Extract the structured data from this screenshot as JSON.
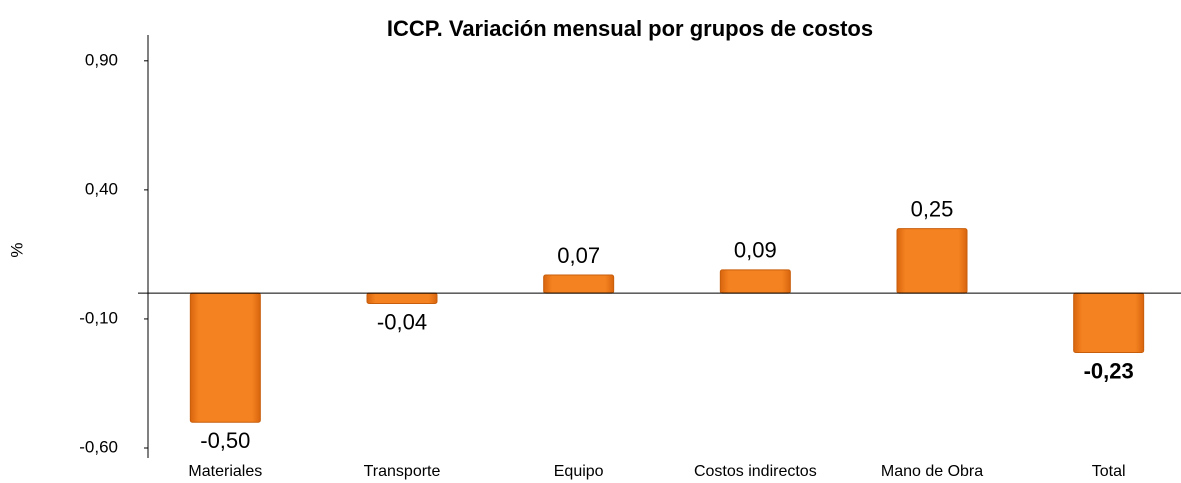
{
  "chart_data": {
    "type": "bar",
    "title": "ICCP. Variación mensual por grupos de costos",
    "y_label": "%",
    "categories": [
      "Materiales",
      "Transporte",
      "Equipo",
      "Costos indirectos",
      "Mano de Obra",
      "Total"
    ],
    "values": [
      -0.5,
      -0.04,
      0.07,
      0.09,
      0.25,
      -0.23
    ],
    "value_labels": [
      "-0,50",
      "-0,04",
      "0,07",
      "0,09",
      "0,25",
      "-0,23"
    ],
    "color": "#f07c1a",
    "ylim": [
      -0.6,
      1.0
    ],
    "yticks": [
      {
        "value": -0.6,
        "label": "-0,60"
      },
      {
        "value": -0.1,
        "label": "-0,10"
      },
      {
        "value": 0.4,
        "label": "0,40"
      },
      {
        "value": 0.9,
        "label": "0,90"
      }
    ]
  }
}
